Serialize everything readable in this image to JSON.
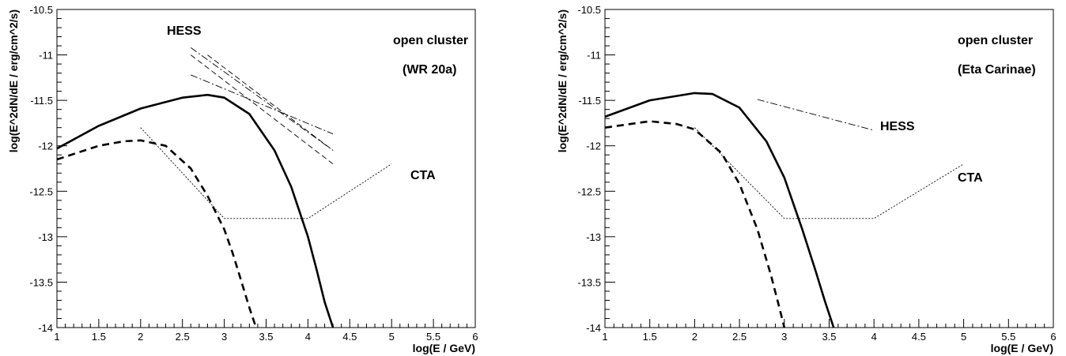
{
  "chart_data": [
    {
      "type": "line",
      "xlabel": "log(E / GeV)",
      "ylabel": "log(E^2dN/dE / erg/cm^2/s)",
      "xlim": [
        1,
        6
      ],
      "ylim": [
        -14,
        -10.5
      ],
      "x_ticks": [
        "1",
        "1.5",
        "2",
        "2.5",
        "3",
        "3.5",
        "4",
        "4.5",
        "5",
        "5.5",
        "6"
      ],
      "y_ticks": [
        "-10.5",
        "-11",
        "-11.5",
        "-12",
        "-12.5",
        "-13",
        "-13.5",
        "-14"
      ],
      "annotations": [
        "open cluster",
        "(WR 20a)",
        "HESS",
        "CTA"
      ],
      "grid": false,
      "series": [
        {
          "style": "solid-thick",
          "x": [
            1.0,
            1.5,
            2.0,
            2.5,
            2.8,
            3.0,
            3.3,
            3.6,
            3.8,
            4.0,
            4.1,
            4.2,
            4.3
          ],
          "y": [
            -12.03,
            -11.78,
            -11.59,
            -11.47,
            -11.44,
            -11.47,
            -11.65,
            -12.05,
            -12.45,
            -13.0,
            -13.35,
            -13.72,
            -14.0
          ]
        },
        {
          "style": "dashed-thick",
          "x": [
            1.0,
            1.5,
            1.8,
            2.0,
            2.3,
            2.6,
            2.8,
            3.0,
            3.1,
            3.2,
            3.3,
            3.38
          ],
          "y": [
            -12.15,
            -12.0,
            -11.95,
            -11.94,
            -12.0,
            -12.25,
            -12.55,
            -12.92,
            -13.18,
            -13.48,
            -13.78,
            -14.0
          ]
        },
        {
          "style": "dotted-thin",
          "x": [
            2.0,
            3.0,
            4.0,
            5.0
          ],
          "y": [
            -11.8,
            -12.8,
            -12.8,
            -12.2
          ]
        },
        {
          "style": "dashdot-thin",
          "x": [
            2.6,
            4.3
          ],
          "y": [
            -10.92,
            -12.05
          ]
        },
        {
          "style": "dash-thin",
          "x": [
            2.6,
            4.3
          ],
          "y": [
            -11.0,
            -12.2
          ]
        },
        {
          "style": "dashdot-thin",
          "x": [
            2.6,
            4.3
          ],
          "y": [
            -11.22,
            -11.87
          ]
        },
        {
          "style": "dash-thin",
          "x": [
            2.8,
            4.3
          ],
          "y": [
            -11.0,
            -12.05
          ]
        }
      ]
    },
    {
      "type": "line",
      "xlabel": "log(E / GeV)",
      "ylabel": "log(E^2dN/dE / erg/cm^2/s)",
      "xlim": [
        1,
        6
      ],
      "ylim": [
        -14,
        -10.5
      ],
      "x_ticks": [
        "1",
        "1.5",
        "2",
        "2.5",
        "3",
        "3.5",
        "4",
        "4.5",
        "5",
        "5.5",
        "6"
      ],
      "y_ticks": [
        "-10.5",
        "-11",
        "-11.5",
        "-12",
        "-12.5",
        "-13",
        "-13.5",
        "-14"
      ],
      "annotations": [
        "open cluster",
        "(Eta Carinae)",
        "HESS",
        "CTA"
      ],
      "grid": false,
      "series": [
        {
          "style": "solid-thick",
          "x": [
            1.0,
            1.5,
            2.0,
            2.2,
            2.5,
            2.8,
            3.0,
            3.2,
            3.35,
            3.45,
            3.55
          ],
          "y": [
            -11.68,
            -11.5,
            -11.42,
            -11.43,
            -11.58,
            -11.95,
            -12.35,
            -12.92,
            -13.38,
            -13.7,
            -14.0
          ]
        },
        {
          "style": "dashed-thick",
          "x": [
            1.0,
            1.5,
            1.8,
            2.0,
            2.3,
            2.5,
            2.7,
            2.85,
            2.95,
            3.0
          ],
          "y": [
            -11.8,
            -11.73,
            -11.76,
            -11.82,
            -12.08,
            -12.42,
            -12.92,
            -13.42,
            -13.8,
            -14.0
          ]
        },
        {
          "style": "dotted-thin",
          "x": [
            2.0,
            3.0,
            4.0,
            5.0
          ],
          "y": [
            -11.8,
            -12.8,
            -12.8,
            -12.2
          ]
        },
        {
          "style": "dashdot-thin",
          "x": [
            2.7,
            4.0
          ],
          "y": [
            -11.49,
            -11.83
          ]
        }
      ]
    }
  ]
}
